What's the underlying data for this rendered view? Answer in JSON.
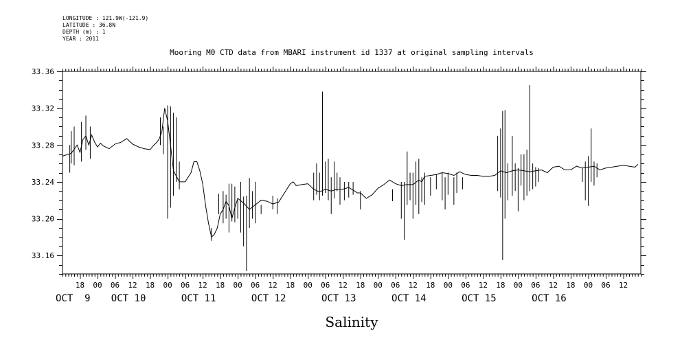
{
  "header": {
    "longitude": "LONGITUDE : 121.9W(-121.9)",
    "latitude": "LATITUDE : 36.8N",
    "depth": "DEPTH (m) : 1",
    "year": "YEAR : 2011"
  },
  "chart_data": {
    "type": "line",
    "title": "Mooring M0 CTD data from MBARI instrument id 1337 at original sampling intervals",
    "xlabel": "",
    "ylabel": "",
    "bottom_label": "Salinity",
    "grid": false,
    "legend": "none",
    "x_unit": "hours from 2011-10-08 12:00",
    "xlim": [
      0,
      198
    ],
    "ylim": [
      33.14,
      33.36
    ],
    "y_ticks": [
      33.16,
      33.2,
      33.24,
      33.28,
      33.32,
      33.36
    ],
    "y_tick_labels": [
      "33.16",
      "33.20",
      "33.24",
      "33.28",
      "33.32",
      "33.36"
    ],
    "x_hour_ticks": [
      {
        "h": 6,
        "label": "18"
      },
      {
        "h": 12,
        "label": "00"
      },
      {
        "h": 18,
        "label": "06"
      },
      {
        "h": 24,
        "label": "12"
      },
      {
        "h": 30,
        "label": "18"
      },
      {
        "h": 36,
        "label": "00"
      },
      {
        "h": 42,
        "label": "06"
      },
      {
        "h": 48,
        "label": "12"
      },
      {
        "h": 54,
        "label": "18"
      },
      {
        "h": 60,
        "label": "00"
      },
      {
        "h": 66,
        "label": "06"
      },
      {
        "h": 72,
        "label": "12"
      },
      {
        "h": 78,
        "label": "18"
      },
      {
        "h": 84,
        "label": "00"
      },
      {
        "h": 90,
        "label": "06"
      },
      {
        "h": 96,
        "label": "12"
      },
      {
        "h": 102,
        "label": "18"
      },
      {
        "h": 108,
        "label": "00"
      },
      {
        "h": 114,
        "label": "06"
      },
      {
        "h": 120,
        "label": "12"
      },
      {
        "h": 126,
        "label": "18"
      },
      {
        "h": 132,
        "label": "00"
      },
      {
        "h": 138,
        "label": "06"
      },
      {
        "h": 144,
        "label": "12"
      },
      {
        "h": 150,
        "label": "18"
      },
      {
        "h": 156,
        "label": "00"
      },
      {
        "h": 162,
        "label": "06"
      },
      {
        "h": 168,
        "label": "12"
      },
      {
        "h": 174,
        "label": "18"
      },
      {
        "h": 180,
        "label": "00"
      },
      {
        "h": 186,
        "label": "06"
      },
      {
        "h": 192,
        "label": "12"
      }
    ],
    "x_day_labels": [
      {
        "h": 0,
        "label": "OCT  9"
      },
      {
        "h": 19,
        "label": "OCT 10"
      },
      {
        "h": 43,
        "label": "OCT 11"
      },
      {
        "h": 67,
        "label": "OCT 12"
      },
      {
        "h": 91,
        "label": "OCT 13"
      },
      {
        "h": 115,
        "label": "OCT 14"
      },
      {
        "h": 139,
        "label": "OCT 15"
      },
      {
        "h": 163,
        "label": "OCT 16"
      }
    ],
    "series": [
      {
        "color": "#000000",
        "x": [
          0,
          3,
          5,
          6,
          7,
          8,
          9,
          10,
          11,
          12,
          13,
          14,
          16,
          18,
          20,
          22,
          24,
          26,
          28,
          30,
          31,
          32,
          33,
          34,
          35,
          36,
          37,
          38,
          40,
          42,
          44,
          45,
          46,
          47,
          48,
          49,
          50,
          51,
          52,
          53,
          54,
          55,
          56,
          57,
          58,
          59,
          60,
          62,
          64,
          66,
          68,
          70,
          72,
          74,
          76,
          78,
          79,
          80,
          82,
          84,
          86,
          88,
          90,
          92,
          94,
          96,
          98,
          100,
          101,
          102,
          104,
          106,
          108,
          110,
          112,
          114,
          116,
          118,
          120,
          122,
          123,
          124,
          126,
          128,
          130,
          132,
          134,
          136,
          138,
          140,
          142,
          144,
          146,
          148,
          150,
          152,
          154,
          156,
          158,
          160,
          162,
          164,
          166,
          168,
          170,
          172,
          174,
          176,
          178,
          180,
          182,
          184,
          186,
          188,
          190,
          192,
          194,
          196,
          197
        ],
        "y": [
          33.268,
          33.271,
          33.28,
          33.272,
          33.286,
          33.29,
          33.28,
          33.291,
          33.283,
          33.278,
          33.282,
          33.279,
          33.276,
          33.281,
          33.283,
          33.287,
          33.281,
          33.278,
          33.276,
          33.275,
          33.279,
          33.282,
          33.286,
          33.294,
          33.32,
          33.306,
          33.28,
          33.252,
          33.24,
          33.24,
          33.25,
          33.262,
          33.262,
          33.252,
          33.238,
          33.214,
          33.195,
          33.18,
          33.183,
          33.19,
          33.205,
          33.21,
          33.219,
          33.214,
          33.2,
          33.212,
          33.222,
          33.217,
          33.21,
          33.215,
          33.22,
          33.219,
          33.216,
          33.218,
          33.228,
          33.238,
          33.24,
          33.236,
          33.237,
          33.238,
          33.232,
          33.229,
          33.232,
          33.23,
          33.232,
          33.232,
          33.234,
          33.23,
          33.228,
          33.228,
          33.222,
          33.226,
          33.233,
          33.237,
          33.242,
          33.238,
          33.236,
          33.237,
          33.237,
          33.242,
          33.24,
          33.246,
          33.247,
          33.248,
          33.25,
          33.249,
          33.247,
          33.251,
          33.248,
          33.247,
          33.247,
          33.246,
          33.246,
          33.247,
          33.252,
          33.25,
          33.252,
          33.253,
          33.252,
          33.251,
          33.252,
          33.253,
          33.25,
          33.256,
          33.257,
          33.253,
          33.253,
          33.257,
          33.255,
          33.256,
          33.257,
          33.253,
          33.255,
          33.256,
          33.257,
          33.258,
          33.257,
          33.256,
          33.259
        ]
      }
    ],
    "spikes": [
      {
        "h": 3,
        "y1": 33.26,
        "y2": 33.295
      },
      {
        "h": 4,
        "y1": 33.258,
        "y2": 33.3
      },
      {
        "h": 6.5,
        "y1": 33.262,
        "y2": 33.305
      },
      {
        "h": 8,
        "y1": 33.275,
        "y2": 33.312
      },
      {
        "h": 9.5,
        "y1": 33.265,
        "y2": 33.3
      },
      {
        "h": 2.5,
        "y1": 33.25,
        "y2": 33.28
      },
      {
        "h": 33.5,
        "y1": 33.28,
        "y2": 33.31
      },
      {
        "h": 34.5,
        "y1": 33.27,
        "y2": 33.3
      },
      {
        "h": 36,
        "y1": 33.2,
        "y2": 33.323
      },
      {
        "h": 37,
        "y1": 33.212,
        "y2": 33.322
      },
      {
        "h": 38,
        "y1": 33.225,
        "y2": 33.315
      },
      {
        "h": 39,
        "y1": 33.24,
        "y2": 33.31
      },
      {
        "h": 40,
        "y1": 33.232,
        "y2": 33.262
      },
      {
        "h": 51,
        "y1": 33.176,
        "y2": 33.19
      },
      {
        "h": 53.5,
        "y1": 33.205,
        "y2": 33.227
      },
      {
        "h": 55,
        "y1": 33.195,
        "y2": 33.23
      },
      {
        "h": 56,
        "y1": 33.2,
        "y2": 33.226
      },
      {
        "h": 57,
        "y1": 33.185,
        "y2": 33.238
      },
      {
        "h": 58,
        "y1": 33.197,
        "y2": 33.238
      },
      {
        "h": 59,
        "y1": 33.196,
        "y2": 33.235
      },
      {
        "h": 60,
        "y1": 33.2,
        "y2": 33.22
      },
      {
        "h": 61,
        "y1": 33.185,
        "y2": 33.24
      },
      {
        "h": 62,
        "y1": 33.17,
        "y2": 33.224
      },
      {
        "h": 63,
        "y1": 33.143,
        "y2": 33.225
      },
      {
        "h": 64,
        "y1": 33.19,
        "y2": 33.244
      },
      {
        "h": 65,
        "y1": 33.2,
        "y2": 33.23
      },
      {
        "h": 66,
        "y1": 33.195,
        "y2": 33.24
      },
      {
        "h": 68,
        "y1": 33.205,
        "y2": 33.215
      },
      {
        "h": 72,
        "y1": 33.21,
        "y2": 33.225
      },
      {
        "h": 73.5,
        "y1": 33.205,
        "y2": 33.222
      },
      {
        "h": 86,
        "y1": 33.22,
        "y2": 33.25
      },
      {
        "h": 87,
        "y1": 33.226,
        "y2": 33.26
      },
      {
        "h": 88,
        "y1": 33.22,
        "y2": 33.25
      },
      {
        "h": 89,
        "y1": 33.225,
        "y2": 33.338
      },
      {
        "h": 90,
        "y1": 33.228,
        "y2": 33.262
      },
      {
        "h": 91,
        "y1": 33.22,
        "y2": 33.265
      },
      {
        "h": 92,
        "y1": 33.205,
        "y2": 33.245
      },
      {
        "h": 93,
        "y1": 33.222,
        "y2": 33.262
      },
      {
        "h": 94,
        "y1": 33.23,
        "y2": 33.25
      },
      {
        "h": 95,
        "y1": 33.215,
        "y2": 33.245
      },
      {
        "h": 96.5,
        "y1": 33.22,
        "y2": 33.24
      },
      {
        "h": 98,
        "y1": 33.223,
        "y2": 33.24
      },
      {
        "h": 99.5,
        "y1": 33.226,
        "y2": 33.24
      },
      {
        "h": 102,
        "y1": 33.21,
        "y2": 33.23
      },
      {
        "h": 113,
        "y1": 33.219,
        "y2": 33.232
      },
      {
        "h": 116,
        "y1": 33.2,
        "y2": 33.24
      },
      {
        "h": 117,
        "y1": 33.177,
        "y2": 33.24
      },
      {
        "h": 118,
        "y1": 33.215,
        "y2": 33.273
      },
      {
        "h": 119,
        "y1": 33.22,
        "y2": 33.25
      },
      {
        "h": 120,
        "y1": 33.2,
        "y2": 33.25
      },
      {
        "h": 121,
        "y1": 33.215,
        "y2": 33.262
      },
      {
        "h": 122,
        "y1": 33.205,
        "y2": 33.265
      },
      {
        "h": 123,
        "y1": 33.218,
        "y2": 33.245
      },
      {
        "h": 124,
        "y1": 33.215,
        "y2": 33.25
      },
      {
        "h": 126,
        "y1": 33.225,
        "y2": 33.245
      },
      {
        "h": 128,
        "y1": 33.232,
        "y2": 33.248
      },
      {
        "h": 130,
        "y1": 33.22,
        "y2": 33.25
      },
      {
        "h": 131,
        "y1": 33.21,
        "y2": 33.245
      },
      {
        "h": 132,
        "y1": 33.226,
        "y2": 33.25
      },
      {
        "h": 134,
        "y1": 33.215,
        "y2": 33.245
      },
      {
        "h": 135,
        "y1": 33.228,
        "y2": 33.25
      },
      {
        "h": 137,
        "y1": 33.232,
        "y2": 33.245
      },
      {
        "h": 149,
        "y1": 33.23,
        "y2": 33.29
      },
      {
        "h": 150,
        "y1": 33.223,
        "y2": 33.298
      },
      {
        "h": 150.7,
        "y1": 33.155,
        "y2": 33.317
      },
      {
        "h": 151.5,
        "y1": 33.2,
        "y2": 33.318
      },
      {
        "h": 152.5,
        "y1": 33.22,
        "y2": 33.26
      },
      {
        "h": 154,
        "y1": 33.225,
        "y2": 33.29
      },
      {
        "h": 155,
        "y1": 33.23,
        "y2": 33.26
      },
      {
        "h": 156,
        "y1": 33.208,
        "y2": 33.255
      },
      {
        "h": 157,
        "y1": 33.236,
        "y2": 33.27
      },
      {
        "h": 158,
        "y1": 33.22,
        "y2": 33.27
      },
      {
        "h": 159,
        "y1": 33.225,
        "y2": 33.275
      },
      {
        "h": 160,
        "y1": 33.23,
        "y2": 33.345
      },
      {
        "h": 161,
        "y1": 33.232,
        "y2": 33.26
      },
      {
        "h": 162,
        "y1": 33.235,
        "y2": 33.256
      },
      {
        "h": 163,
        "y1": 33.24,
        "y2": 33.255
      },
      {
        "h": 178,
        "y1": 33.24,
        "y2": 33.255
      },
      {
        "h": 179,
        "y1": 33.22,
        "y2": 33.262
      },
      {
        "h": 180,
        "y1": 33.214,
        "y2": 33.268
      },
      {
        "h": 181,
        "y1": 33.24,
        "y2": 33.298
      },
      {
        "h": 182,
        "y1": 33.236,
        "y2": 33.262
      },
      {
        "h": 183,
        "y1": 33.245,
        "y2": 33.26
      }
    ]
  }
}
